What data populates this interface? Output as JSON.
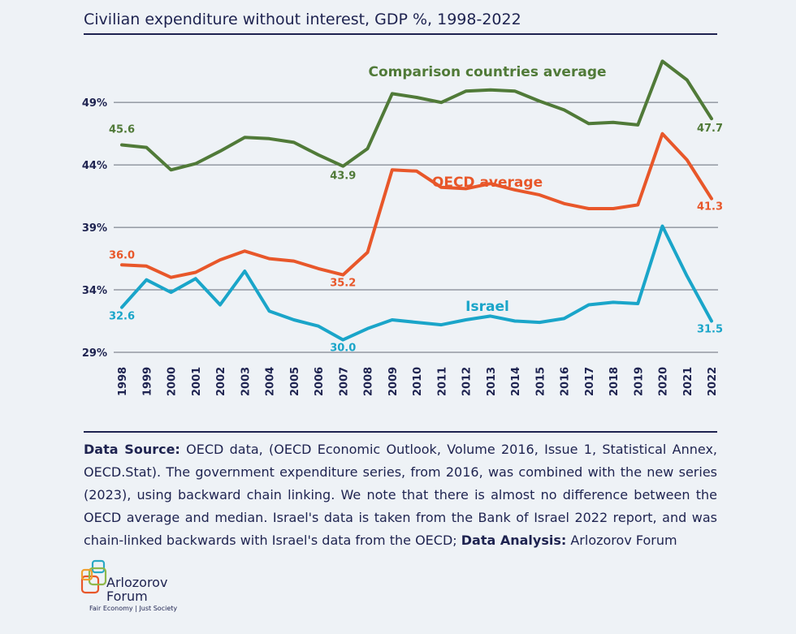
{
  "title": "Civilian expenditure without interest, GDP %, 1998-2022",
  "chart_data": {
    "type": "line",
    "title": "Civilian expenditure without interest, GDP %, 1998-2022",
    "x": [
      "1998",
      "1999",
      "2000",
      "2001",
      "2002",
      "2003",
      "2004",
      "2005",
      "2006",
      "2007",
      "2008",
      "2009",
      "2010",
      "2011",
      "2012",
      "2013",
      "2014",
      "2015",
      "2016",
      "2017",
      "2018",
      "2019",
      "2020",
      "2021",
      "2022"
    ],
    "yticks": [
      29,
      34,
      39,
      44,
      49
    ],
    "ytick_labels": [
      "29%",
      "34%",
      "39%",
      "44%",
      "49%"
    ],
    "ylim": [
      29,
      52
    ],
    "series": [
      {
        "name": "Comparison countries average",
        "color": "#507a38",
        "values": [
          45.6,
          45.4,
          43.6,
          44.1,
          45.1,
          46.2,
          46.1,
          45.8,
          44.8,
          43.9,
          45.3,
          49.7,
          49.4,
          49.0,
          49.9,
          50.0,
          49.9,
          49.1,
          48.4,
          47.3,
          47.4,
          47.2,
          52.3,
          50.8,
          47.7
        ],
        "start_label": "45.6",
        "min_label": "43.9",
        "end_label": "47.7"
      },
      {
        "name": "OECD average",
        "color": "#e8572a",
        "values": [
          36.0,
          35.9,
          35.0,
          35.4,
          36.4,
          37.1,
          36.5,
          36.3,
          35.7,
          35.2,
          37.0,
          43.6,
          43.5,
          42.2,
          42.1,
          42.5,
          42.0,
          41.6,
          40.9,
          40.5,
          40.5,
          40.8,
          46.5,
          44.4,
          41.3
        ],
        "start_label": "36.0",
        "min_label": "35.2",
        "end_label": "41.3"
      },
      {
        "name": "Israel",
        "color": "#1aa5c9",
        "values": [
          32.6,
          34.8,
          33.8,
          34.9,
          32.8,
          35.5,
          32.3,
          31.6,
          31.1,
          30.0,
          30.9,
          31.6,
          31.4,
          31.2,
          31.6,
          31.9,
          31.5,
          31.4,
          31.7,
          32.8,
          33.0,
          32.9,
          39.1,
          35.1,
          31.5
        ],
        "start_label": "32.6",
        "min_label": "30.0",
        "end_label": "31.5"
      }
    ]
  },
  "source": {
    "label1": "Data Source:",
    "text1": " OECD data, (OECD Economic Outlook, Volume 2016, Issue 1, Statistical Annex, OECD.Stat). The government expenditure series, from 2016, was combined with the new series (2023), using backward chain linking. We note that there is almost no difference between the OECD average and median. Israel's data is taken from the Bank of Israel 2022 report, and was chain-linked backwards with Israel's data from the OECD; ",
    "label2": "Data Analysis:",
    "text2": " Arlozorov Forum"
  },
  "logo": {
    "line1": "Arlozorov",
    "line2": "Forum",
    "tagline": "Fair Economy | Just Society",
    "colors": [
      "#2aa9c4",
      "#e8572a",
      "#8fb84a",
      "#f0a030"
    ]
  }
}
